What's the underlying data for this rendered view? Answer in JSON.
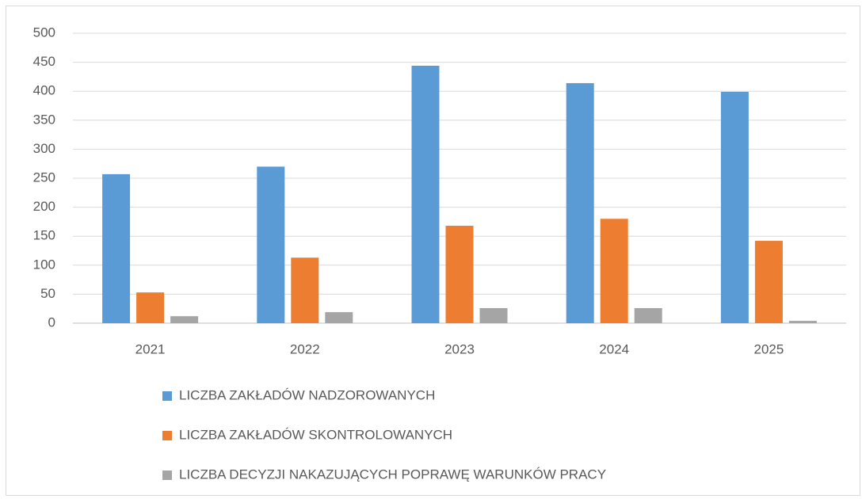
{
  "chart_data": {
    "type": "bar",
    "categories": [
      "2021",
      "2022",
      "2023",
      "2024",
      "2025"
    ],
    "series": [
      {
        "name": "LICZBA ZAKŁADÓW NADZOROWANYCH",
        "color": "#5b9bd5",
        "values": [
          257,
          270,
          444,
          414,
          399
        ]
      },
      {
        "name": "LICZBA ZAKŁADÓW SKONTROLOWANYCH",
        "color": "#ed7d31",
        "values": [
          53,
          113,
          168,
          180,
          142
        ]
      },
      {
        "name": "LICZBA DECYZJI NAKAZUJĄCYCH POPRAWĘ WARUNKÓW PRACY",
        "color": "#a5a5a5",
        "values": [
          12,
          19,
          26,
          26,
          4
        ]
      }
    ],
    "ylim": [
      0,
      500
    ],
    "yticks": [
      0,
      50,
      100,
      150,
      200,
      250,
      300,
      350,
      400,
      450,
      500
    ],
    "grid": true,
    "legend": "bottom"
  }
}
